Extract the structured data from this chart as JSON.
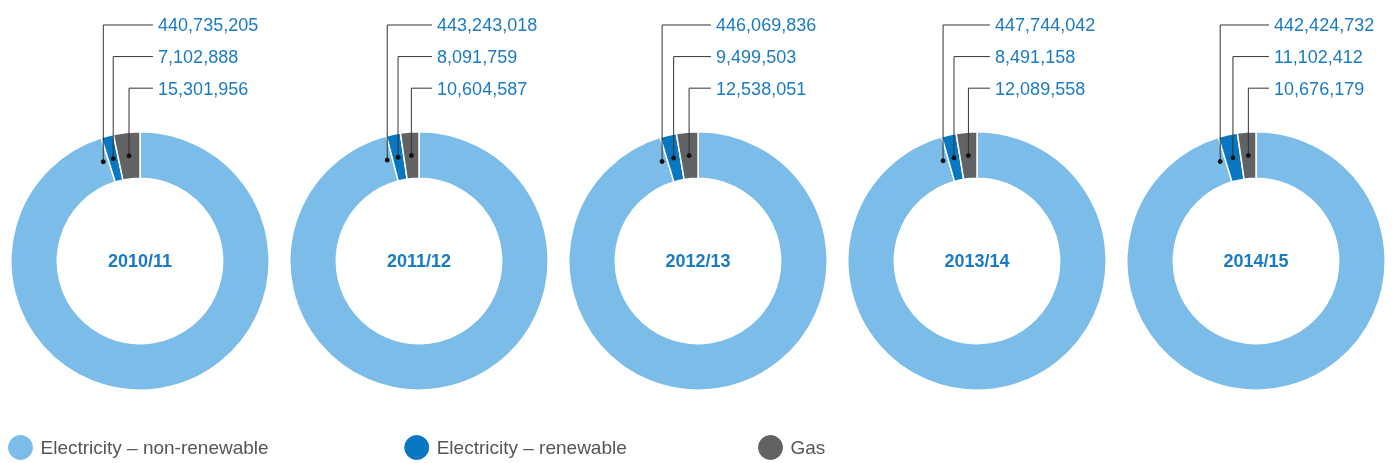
{
  "chart_data": [
    {
      "type": "donut",
      "title": "2010/11",
      "categories": [
        "Electricity – non-renewable",
        "Electricity – renewable",
        "Gas"
      ],
      "values": [
        440735205,
        7102888,
        15301956
      ],
      "value_labels": [
        "440,735,205",
        "7,102,888",
        "15,301,956"
      ],
      "colors": [
        "#7bbde8",
        "#0a77c2",
        "#616264"
      ],
      "legend": "bottom"
    },
    {
      "type": "donut",
      "title": "2011/12",
      "values": [
        443243018,
        8091759,
        10604587
      ],
      "value_labels": [
        "443,243,018",
        "8,091,759",
        "10,604,587"
      ],
      "colors": [
        "#7bbde8",
        "#0a77c2",
        "#616264"
      ]
    },
    {
      "type": "donut",
      "title": "2012/13",
      "values": [
        446069836,
        9499503,
        12538051
      ],
      "value_labels": [
        "446,069,836",
        "9,499,503",
        "12,538,051"
      ],
      "colors": [
        "#7bbde8",
        "#0a77c2",
        "#616264"
      ]
    },
    {
      "type": "donut",
      "title": "2013/14",
      "values": [
        447744042,
        8491158,
        12089558
      ],
      "value_labels": [
        "447,744,042",
        "8,491,158",
        "12,089,558"
      ],
      "colors": [
        "#7bbde8",
        "#0a77c2",
        "#616264"
      ]
    },
    {
      "type": "donut",
      "title": "2014/15",
      "values": [
        442424732,
        11102412,
        10676179
      ],
      "value_labels": [
        "442,424,732",
        "11,102,412",
        "10,676,179"
      ],
      "colors": [
        "#7bbde8",
        "#0a77c2",
        "#616264"
      ]
    }
  ]
}
